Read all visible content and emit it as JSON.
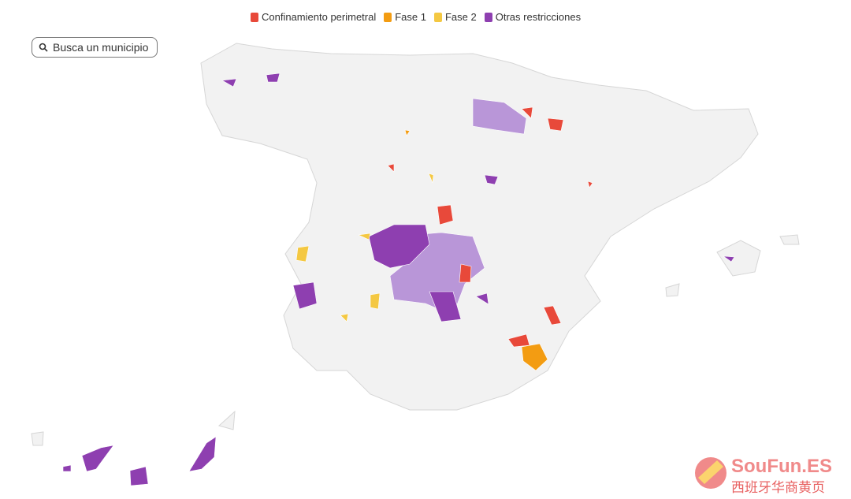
{
  "legend": [
    {
      "label": "Confinamiento perimetral",
      "color": "#e8493a"
    },
    {
      "label": "Fase 1",
      "color": "#f39c12"
    },
    {
      "label": "Fase 2",
      "color": "#f4c842"
    },
    {
      "label": "Otras restricciones",
      "color": "#8e3fb0"
    }
  ],
  "search": {
    "placeholder": "Busca un municipio"
  },
  "watermark": {
    "brand": "SouFun.ES",
    "subtitle": "西班牙华商黄页"
  },
  "secondary_color": "#b996d8"
}
